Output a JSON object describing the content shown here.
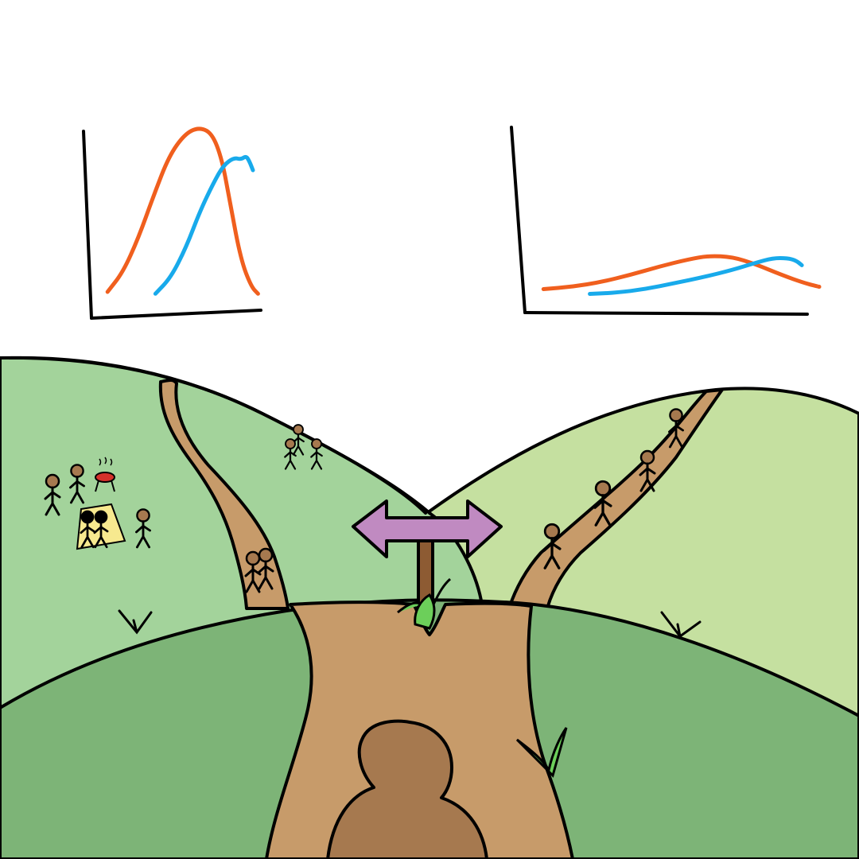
{
  "palette": {
    "sky": "#ffffff",
    "left_hill": "#a3d39b",
    "right_hill": "#c5e0a0",
    "foreground_hill": "#7db477",
    "path": "#c79b6a",
    "viewer_silhouette": "#a6794f",
    "signpost_arrow": "#c08ac1",
    "signpost_pole": "#8d5b33",
    "orange_curve": "#f05f1e",
    "blue_curve": "#18aaeb",
    "blanket": "#f7e98f",
    "grill": "#d5312b",
    "grass": "#6ccf5a",
    "ink": "#000000"
  },
  "chart_data": [
    {
      "type": "line",
      "title": "",
      "xlabel": "",
      "ylabel": "",
      "grid": false,
      "axis_ticks": false,
      "xlim": [
        0,
        10
      ],
      "ylim": [
        0,
        10
      ],
      "series": [
        {
          "color": "#f05f1e",
          "x": [
            0.8,
            1.7,
            2.6,
            3.5,
            4.4,
            5.3,
            6.1,
            6.9,
            7.5,
            8.0,
            8.6,
            9.2,
            9.6
          ],
          "y": [
            0.8,
            1.9,
            3.8,
            6.2,
            8.4,
            9.6,
            10.0,
            9.7,
            8.2,
            5.6,
            2.6,
            1.1,
            0.7
          ]
        },
        {
          "color": "#18aaeb",
          "x": [
            3.6,
            4.5,
            5.4,
            6.2,
            7.0,
            7.6,
            8.2,
            8.6,
            8.9,
            9.1,
            9.3
          ],
          "y": [
            0.7,
            1.6,
            3.3,
            5.3,
            6.9,
            7.9,
            8.3,
            8.2,
            8.4,
            8.1,
            7.6
          ]
        }
      ]
    },
    {
      "type": "line",
      "title": "",
      "xlabel": "",
      "ylabel": "",
      "grid": false,
      "axis_ticks": false,
      "xlim": [
        0,
        10
      ],
      "ylim": [
        0,
        10
      ],
      "series": [
        {
          "color": "#f05f1e",
          "x": [
            0.5,
            1.5,
            2.5,
            3.5,
            4.5,
            5.5,
            6.2,
            7.0,
            7.8,
            8.7,
            9.5,
            10.0
          ],
          "y": [
            1.1,
            1.3,
            1.7,
            2.3,
            3.0,
            3.6,
            3.9,
            3.8,
            3.2,
            2.3,
            1.6,
            1.3
          ]
        },
        {
          "color": "#18aaeb",
          "x": [
            2.1,
            3.0,
            4.0,
            5.0,
            6.0,
            7.0,
            7.8,
            8.4,
            8.9,
            9.2,
            9.4
          ],
          "y": [
            0.7,
            0.8,
            1.1,
            1.6,
            2.1,
            2.7,
            3.3,
            3.7,
            3.7,
            3.5,
            3.1
          ]
        }
      ]
    }
  ]
}
